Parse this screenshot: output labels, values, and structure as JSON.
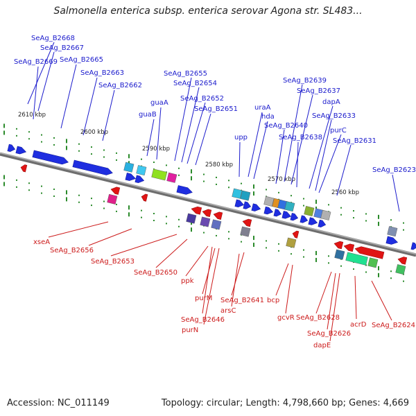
{
  "title": "Salmonella enterica subsp. enterica serovar Agona str. SL483...",
  "footer": {
    "accession": "Accession: NC_011149",
    "stats": "Topology: circular; Length: 4,798,660 bp; Genes: 4,669"
  },
  "kbp_ticks": [
    "2610 kbp",
    "2600 kbp",
    "2590 kbp",
    "2580 kbp",
    "2570 kbp",
    "2560 kbp"
  ],
  "forward_labels": [
    "SeAg_B2668",
    "SeAg_B2667",
    "SeAg_B2669",
    "SeAg_B2665",
    "SeAg_B2663",
    "SeAg_B2662",
    "SeAg_B2655",
    "SeAg_B2654",
    "guaA",
    "SeAg_B2652",
    "guaB",
    "SeAg_B2651",
    "uraA",
    "hda",
    "upp",
    "SeAg_B2640",
    "SeAg_B2639",
    "SeAg_B2637",
    "dapA",
    "SeAg_B2638",
    "SeAg_B2633",
    "purC",
    "SeAg_B2631",
    "SeAg_B2623"
  ],
  "reverse_labels": [
    "xseA",
    "SeAg_B2656",
    "SeAg_B2653",
    "SeAg_B2650",
    "ppk",
    "purM",
    "SeAg_B2646",
    "purN",
    "SeAg_B2641",
    "arsC",
    "bcp",
    "gcvR",
    "SeAg_B2628",
    "SeAg_B2626",
    "dapE",
    "acrD",
    "SeAg_B2624"
  ],
  "colors": {
    "forward_text": "#1a1acc",
    "reverse_text": "#cc1a1a",
    "forward_gene": "#1f2ee0",
    "reverse_gene": "#e01414",
    "tick": "#2a8a2a",
    "backbone": "#8c8c8c"
  }
}
